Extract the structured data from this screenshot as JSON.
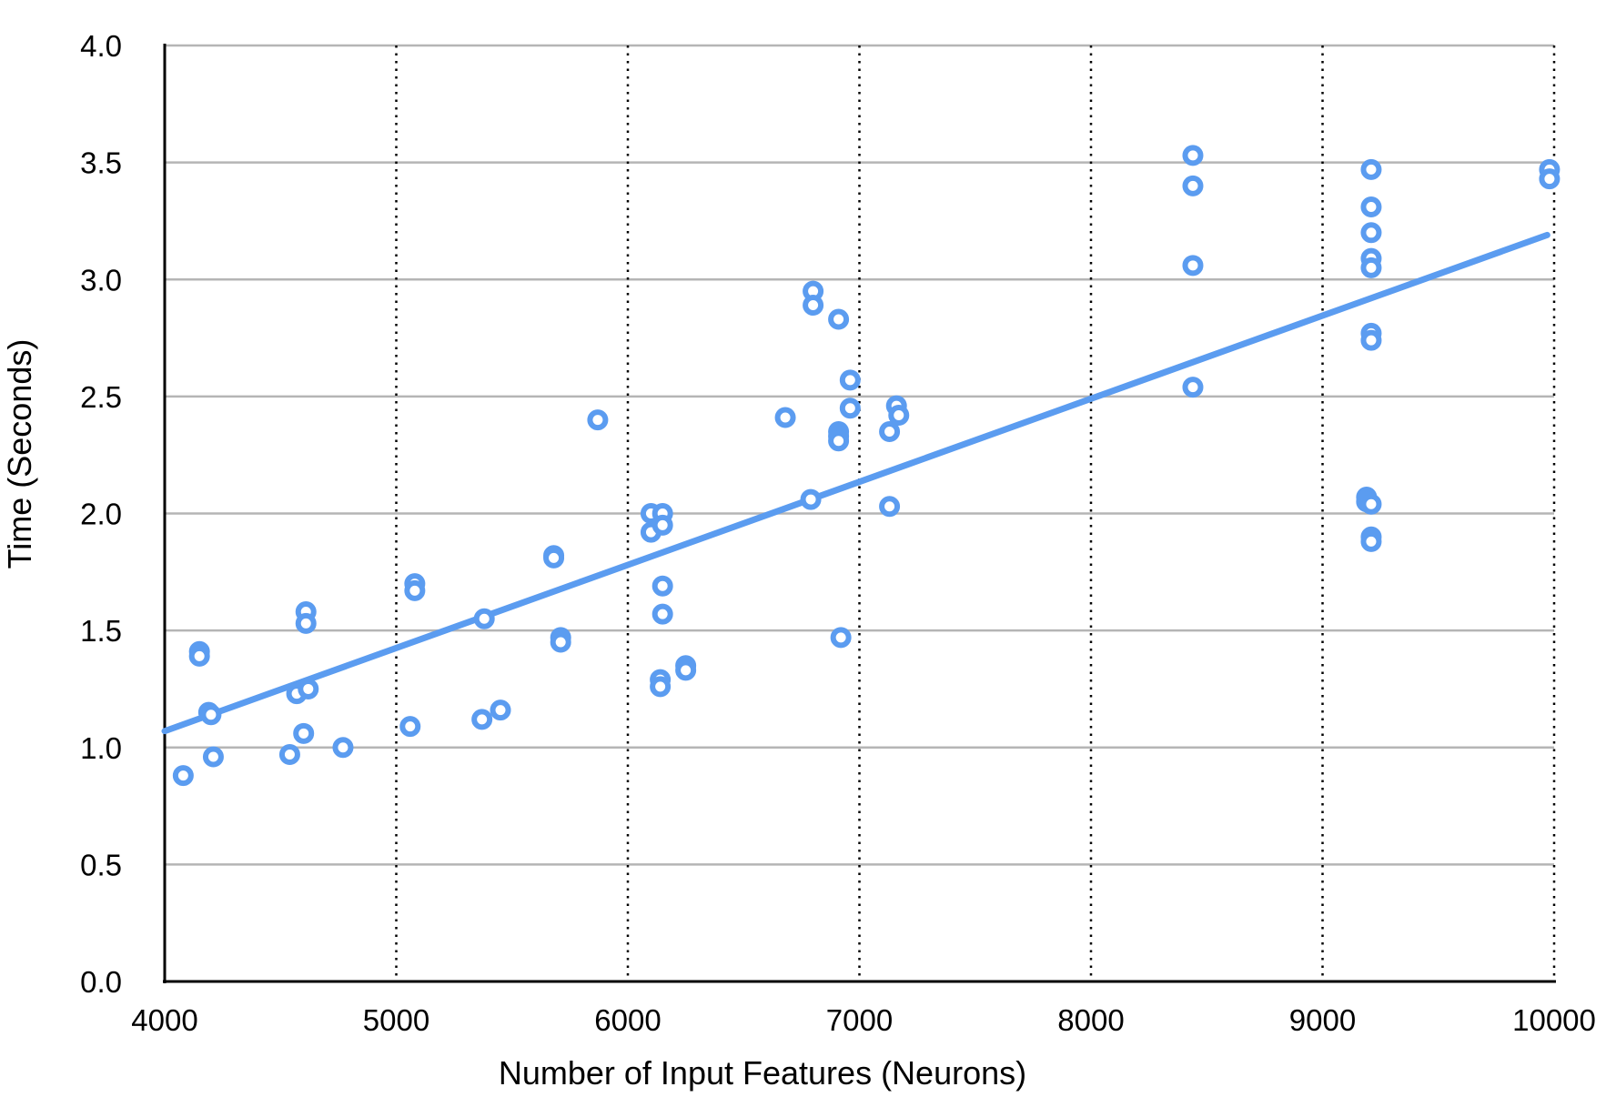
{
  "chart_data": {
    "type": "scatter",
    "title": "",
    "xlabel": "Number of Input Features (Neurons)",
    "ylabel": "Time (Seconds)",
    "xlim": [
      4000,
      10000
    ],
    "ylim": [
      0.0,
      4.0
    ],
    "x_ticks": [
      "4000",
      "5000",
      "6000",
      "7000",
      "8000",
      "9000",
      "10000"
    ],
    "y_ticks": [
      "0.0",
      "0.5",
      "1.0",
      "1.5",
      "2.0",
      "2.5",
      "3.0",
      "3.5",
      "4.0"
    ],
    "x_tick_values": [
      4000,
      5000,
      6000,
      7000,
      8000,
      9000,
      10000
    ],
    "y_tick_values": [
      0.0,
      0.5,
      1.0,
      1.5,
      2.0,
      2.5,
      3.0,
      3.5,
      4.0
    ],
    "grid": {
      "horizontal": "solid",
      "vertical": "dotted"
    },
    "legend": "none",
    "colors": {
      "series": "#5b9cf0",
      "grid_h": "#b5b5b5",
      "grid_v": "#000000",
      "axis": "#000000"
    },
    "series": [
      {
        "points": [
          [
            4080,
            0.88
          ],
          [
            4150,
            1.41
          ],
          [
            4150,
            1.39
          ],
          [
            4190,
            1.15
          ],
          [
            4200,
            1.14
          ],
          [
            4210,
            0.96
          ],
          [
            4540,
            0.97
          ],
          [
            4570,
            1.23
          ],
          [
            4600,
            1.06
          ],
          [
            4610,
            1.58
          ],
          [
            4610,
            1.53
          ],
          [
            4620,
            1.25
          ],
          [
            4770,
            1.0
          ],
          [
            5060,
            1.09
          ],
          [
            5080,
            1.7
          ],
          [
            5080,
            1.67
          ],
          [
            5370,
            1.12
          ],
          [
            5380,
            1.55
          ],
          [
            5450,
            1.16
          ],
          [
            5680,
            1.82
          ],
          [
            5680,
            1.81
          ],
          [
            5710,
            1.47
          ],
          [
            5710,
            1.45
          ],
          [
            5870,
            2.4
          ],
          [
            6100,
            2.0
          ],
          [
            6100,
            1.92
          ],
          [
            6140,
            1.29
          ],
          [
            6140,
            1.26
          ],
          [
            6150,
            1.69
          ],
          [
            6150,
            1.57
          ],
          [
            6150,
            2.0
          ],
          [
            6150,
            1.95
          ],
          [
            6250,
            1.35
          ],
          [
            6250,
            1.33
          ],
          [
            6680,
            2.41
          ],
          [
            6790,
            2.06
          ],
          [
            6800,
            2.95
          ],
          [
            6800,
            2.89
          ],
          [
            6910,
            2.83
          ],
          [
            6910,
            2.35
          ],
          [
            6910,
            2.33
          ],
          [
            6910,
            2.31
          ],
          [
            6920,
            1.47
          ],
          [
            6960,
            2.57
          ],
          [
            6960,
            2.45
          ],
          [
            7130,
            2.35
          ],
          [
            7130,
            2.03
          ],
          [
            7160,
            2.46
          ],
          [
            7170,
            2.42
          ],
          [
            8440,
            3.53
          ],
          [
            8440,
            3.4
          ],
          [
            8440,
            3.06
          ],
          [
            8440,
            2.54
          ],
          [
            9190,
            2.07
          ],
          [
            9190,
            2.05
          ],
          [
            9210,
            3.47
          ],
          [
            9210,
            3.31
          ],
          [
            9210,
            3.2
          ],
          [
            9210,
            3.09
          ],
          [
            9210,
            3.05
          ],
          [
            9210,
            2.77
          ],
          [
            9210,
            2.74
          ],
          [
            9210,
            2.04
          ],
          [
            9210,
            1.9
          ],
          [
            9210,
            1.88
          ],
          [
            9980,
            3.47
          ],
          [
            9980,
            3.43
          ]
        ]
      }
    ],
    "trendline": {
      "x": [
        4000,
        9970
      ],
      "y": [
        1.07,
        3.19
      ]
    }
  }
}
